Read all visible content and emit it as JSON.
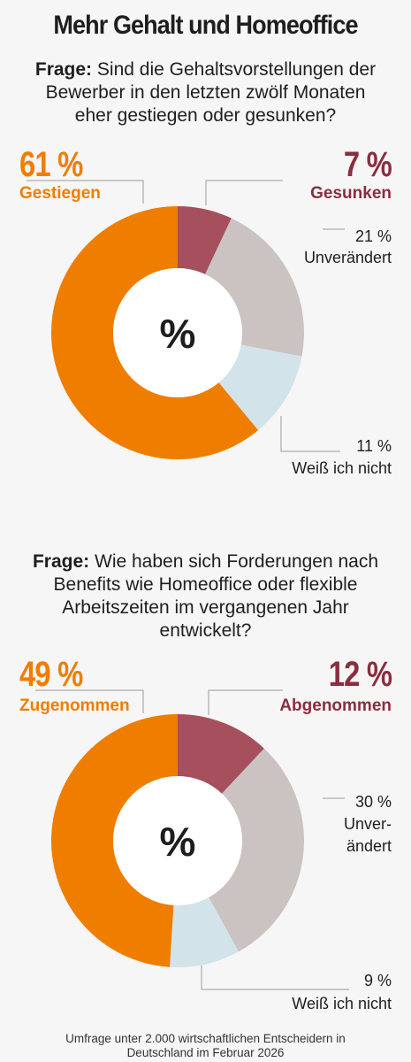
{
  "title": "Mehr Gehalt und Homeoffice",
  "footer_line1": "Umfrage unter 2.000 wirtschaftlichen Entscheidern in",
  "footer_line2": "Deutschland im Februar 2026",
  "colors": {
    "orange": "#ef7d00",
    "dark_red": "#a5505c",
    "gray": "#cbc3c1",
    "light_blue": "#d3e3ea",
    "accent_red_text": "#8b2d3f"
  },
  "chart_data": [
    {
      "type": "pie",
      "question_prefix": "Frage:",
      "question_line1": "Sind die Gehaltsvorstellungen der",
      "question_line2": "Bewerber in den letzten zwölf Monaten",
      "question_line3": "eher gestiegen oder gesunken?",
      "center_label": "%",
      "slices": [
        {
          "label": "Gesunken",
          "value": 7,
          "display": "7 %"
        },
        {
          "label": "Unverändert",
          "value": 21,
          "display": "21 %"
        },
        {
          "label": "Weiß ich nicht",
          "value": 11,
          "display": "11 %"
        },
        {
          "label": "Gestiegen",
          "value": 61,
          "display": "61 %"
        }
      ]
    },
    {
      "type": "pie",
      "question_prefix": "Frage:",
      "question_line1": "Wie haben sich Forderungen nach",
      "question_line2": "Benefits wie Homeoffice oder flexible",
      "question_line3": "Arbeitszeiten im vergangenen Jahr",
      "question_line4": "entwickelt?",
      "center_label": "%",
      "slices": [
        {
          "label": "Abgenommen",
          "value": 12,
          "display": "12 %"
        },
        {
          "label_line1": "Unver-",
          "label_line2": "ändert",
          "value": 30,
          "display": "30 %"
        },
        {
          "label": "Weiß ich nicht",
          "value": 9,
          "display": "9 %"
        },
        {
          "label": "Zugenommen",
          "value": 49,
          "display": "49 %"
        }
      ]
    }
  ]
}
